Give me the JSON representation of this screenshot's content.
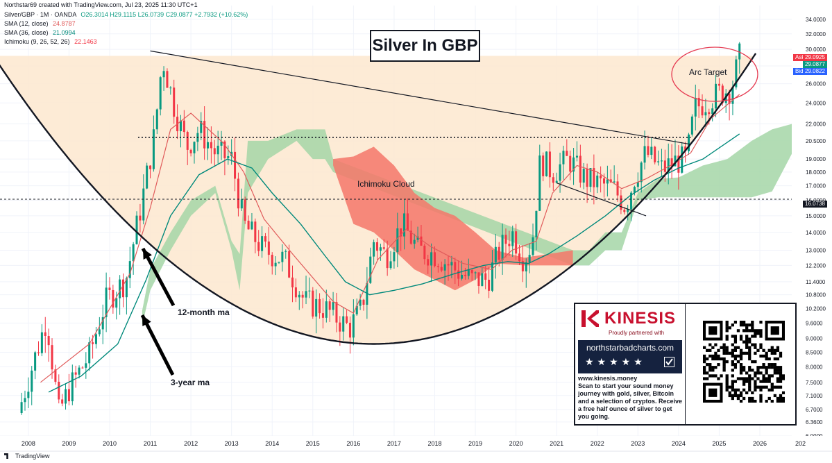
{
  "header": {
    "credit": "Northstar69 created with TradingView.com, Jul 23, 2025 11:30 UTC+1",
    "symbol": "Silver/GBP · 1M · OANDA",
    "ohlc": "O26.3014 H29.1115 L26.0739 C29.0877 +2.7932 (+10.62%)",
    "sma12_label": "SMA (12, close)",
    "sma12_value": "24.8787",
    "sma36_label": "SMA (36, close)",
    "sma36_value": "21.0994",
    "ichimoku_label": "Ichimoku (9, 26, 52, 26)",
    "ichimoku_value": "22.1463"
  },
  "title": "Silver In GBP",
  "annotations": {
    "cloud": "Ichimoku Cloud",
    "arc_target": "Arc Target",
    "ma12": "12-month ma",
    "ma36": "3-year ma"
  },
  "price_labels": {
    "ask_tag": "Ask",
    "ask": "29.0925",
    "last": "29.0877",
    "bid_tag": "Bid",
    "bid": "29.0822",
    "marker": "16.0738"
  },
  "promo": {
    "brand": "KINESIS",
    "tagline": "Proudly partnered with",
    "partner": "northstarbadcharts.com",
    "stars": "★★★★★",
    "url": "www.kinesis.money",
    "text": "Scan to start your sound money journey with gold, silver, Bitcoin and a selection of cryptos. Receive a free half ounce of silver to get you going."
  },
  "footer": {
    "logo": "TradingView"
  },
  "colors": {
    "up": "#089981",
    "down": "#f23645",
    "sma12": "#e05a5a",
    "sma36": "#00897b",
    "cloud_bull": "#a5d6a7",
    "cloud_bear": "#f4776a",
    "cup_fill": "#fde7cf",
    "arc_target_circle": "#e53950"
  },
  "chart_data": {
    "type": "candlestick",
    "scale": "log",
    "x_axis": {
      "ticks": [
        "2008",
        "2009",
        "2010",
        "2011",
        "2012",
        "2013",
        "2014",
        "2015",
        "2016",
        "2017",
        "2018",
        "2019",
        "2020",
        "2021",
        "2022",
        "2023",
        "2024",
        "2025",
        "2026",
        "202"
      ]
    },
    "y_axis": {
      "ticks": [
        "34.0000",
        "32.0000",
        "30.0000",
        "28.0000",
        "26.0000",
        "24.0000",
        "22.0000",
        "20.5000",
        "19.0000",
        "18.0000",
        "17.0000",
        "16.0000",
        "15.0000",
        "14.0000",
        "13.0000",
        "12.2000",
        "11.4000",
        "10.8000",
        "10.2000",
        "9.6000",
        "9.0000",
        "8.5000",
        "8.0000",
        "7.5000",
        "7.1000",
        "6.7000",
        "6.3600",
        "6.0000"
      ],
      "range": [
        6.0,
        36.0
      ]
    },
    "series": [
      {
        "name": "Silver/GBP · 1M · OANDA",
        "kind": "candles",
        "anchors": [
          [
            2007.75,
            6.6
          ],
          [
            2008.2,
            8.5
          ],
          [
            2008.45,
            9.8
          ],
          [
            2008.75,
            6.6
          ],
          [
            2009.0,
            7.3
          ],
          [
            2009.5,
            8.4
          ],
          [
            2009.9,
            10.5
          ],
          [
            2010.4,
            11.5
          ],
          [
            2010.8,
            16.0
          ],
          [
            2011.1,
            21.0
          ],
          [
            2011.3,
            29.0
          ],
          [
            2011.6,
            23.5
          ],
          [
            2011.9,
            20.0
          ],
          [
            2012.2,
            21.5
          ],
          [
            2012.6,
            19.5
          ],
          [
            2013.0,
            19.0
          ],
          [
            2013.3,
            14.5
          ],
          [
            2013.8,
            13.0
          ],
          [
            2014.3,
            12.5
          ],
          [
            2014.8,
            10.5
          ],
          [
            2015.3,
            10.2
          ],
          [
            2015.9,
            9.4
          ],
          [
            2016.2,
            10.2
          ],
          [
            2016.5,
            13.5
          ],
          [
            2016.8,
            12.7
          ],
          [
            2017.2,
            14.5
          ],
          [
            2017.6,
            13.0
          ],
          [
            2018.0,
            12.8
          ],
          [
            2018.5,
            12.0
          ],
          [
            2018.9,
            11.5
          ],
          [
            2019.3,
            11.5
          ],
          [
            2019.6,
            13.0
          ],
          [
            2019.9,
            14.0
          ],
          [
            2020.2,
            12.5
          ],
          [
            2020.4,
            13.5
          ],
          [
            2020.6,
            19.0
          ],
          [
            2020.9,
            18.0
          ],
          [
            2021.3,
            19.0
          ],
          [
            2021.7,
            17.5
          ],
          [
            2022.0,
            17.2
          ],
          [
            2022.4,
            16.8
          ],
          [
            2022.7,
            15.6
          ],
          [
            2022.9,
            17.5
          ],
          [
            2023.2,
            19.5
          ],
          [
            2023.6,
            18.2
          ],
          [
            2023.9,
            18.8
          ],
          [
            2024.2,
            19.0
          ],
          [
            2024.4,
            23.5
          ],
          [
            2024.8,
            24.5
          ],
          [
            2025.0,
            25.0
          ],
          [
            2025.3,
            25.5
          ],
          [
            2025.5,
            29.0877
          ]
        ]
      },
      {
        "name": "SMA (12, close)",
        "kind": "line",
        "points": [
          [
            2008.3,
            7.5
          ],
          [
            2009.5,
            8.8
          ],
          [
            2010.5,
            11.8
          ],
          [
            2011.0,
            15.5
          ],
          [
            2011.5,
            21.5
          ],
          [
            2012.0,
            23.0
          ],
          [
            2012.8,
            20.3
          ],
          [
            2013.3,
            18.0
          ],
          [
            2013.8,
            14.8
          ],
          [
            2014.5,
            12.8
          ],
          [
            2015.5,
            10.5
          ],
          [
            2016.0,
            10.0
          ],
          [
            2016.6,
            12.5
          ],
          [
            2017.3,
            14.2
          ],
          [
            2017.9,
            13.2
          ],
          [
            2018.7,
            12.3
          ],
          [
            2019.4,
            12.0
          ],
          [
            2019.9,
            13.0
          ],
          [
            2020.5,
            13.5
          ],
          [
            2020.9,
            16.5
          ],
          [
            2021.5,
            18.5
          ],
          [
            2022.0,
            18.0
          ],
          [
            2022.6,
            16.8
          ],
          [
            2023.2,
            17.5
          ],
          [
            2023.8,
            18.5
          ],
          [
            2024.3,
            19.5
          ],
          [
            2024.8,
            22.5
          ],
          [
            2025.5,
            24.8787
          ]
        ]
      },
      {
        "name": "SMA (36, close)",
        "kind": "line",
        "points": [
          [
            2008.5,
            7.2
          ],
          [
            2009.3,
            7.7
          ],
          [
            2010.2,
            8.8
          ],
          [
            2010.9,
            11.5
          ],
          [
            2011.5,
            15.0
          ],
          [
            2012.2,
            17.8
          ],
          [
            2012.9,
            19.0
          ],
          [
            2013.5,
            18.3
          ],
          [
            2014.0,
            16.5
          ],
          [
            2014.7,
            14.5
          ],
          [
            2015.3,
            12.7
          ],
          [
            2015.8,
            11.4
          ],
          [
            2016.4,
            10.8
          ],
          [
            2017.0,
            11.0
          ],
          [
            2017.7,
            11.3
          ],
          [
            2018.5,
            11.8
          ],
          [
            2019.2,
            12.2
          ],
          [
            2019.8,
            12.4
          ],
          [
            2020.3,
            12.3
          ],
          [
            2020.8,
            12.8
          ],
          [
            2021.5,
            13.8
          ],
          [
            2022.2,
            15.0
          ],
          [
            2022.8,
            16.3
          ],
          [
            2023.4,
            17.4
          ],
          [
            2024.0,
            18.3
          ],
          [
            2024.6,
            19.0
          ],
          [
            2025.5,
            21.0994
          ]
        ]
      },
      {
        "name": "Ichimoku (9, 26, 52, 26)",
        "kind": "cloud",
        "bull": [
          [
            2010.8,
            10.1,
            9.5
          ],
          [
            2011.0,
            12.0,
            11.0
          ],
          [
            2011.5,
            14.0,
            13.0
          ],
          [
            2012.0,
            16.0,
            15.0
          ],
          [
            2012.6,
            17.0,
            16.5
          ],
          [
            2013.0,
            13.5,
            13.0
          ],
          [
            2013.2,
            12.8,
            11.0
          ],
          [
            2013.4,
            20.5,
            16.5
          ],
          [
            2013.9,
            20.5,
            19.0
          ],
          [
            2014.6,
            21.5,
            20.5
          ],
          [
            2015.0,
            21.5,
            19.0
          ],
          [
            2015.3,
            21.5,
            19.0
          ],
          [
            2015.5,
            19.0,
            18.0
          ],
          [
            2021.4,
            13.0,
            12.2
          ],
          [
            2021.8,
            13.0,
            12.2
          ],
          [
            2022.2,
            14.0,
            13.0
          ],
          [
            2022.6,
            14.0,
            13.0
          ],
          [
            2023.0,
            16.5,
            16.0
          ],
          [
            2023.5,
            17.5,
            16.2
          ],
          [
            2024.0,
            17.6,
            16.2
          ],
          [
            2024.6,
            18.5,
            16.2
          ],
          [
            2025.2,
            19.0,
            16.2
          ],
          [
            2025.8,
            20.5,
            16.2
          ],
          [
            2026.3,
            21.5,
            16.6
          ],
          [
            2026.8,
            22.0,
            19.5
          ]
        ],
        "bear": [
          [
            2015.5,
            19.0,
            18.5
          ],
          [
            2016.0,
            19.2,
            14.5
          ],
          [
            2016.5,
            20.0,
            14.0
          ],
          [
            2017.0,
            18.5,
            13.0
          ],
          [
            2017.5,
            16.5,
            12.0
          ],
          [
            2018.0,
            15.5,
            11.5
          ],
          [
            2018.5,
            15.0,
            11.0
          ],
          [
            2019.0,
            14.0,
            11.5
          ],
          [
            2019.5,
            13.0,
            12.3
          ],
          [
            2020.2,
            12.6,
            12.2
          ],
          [
            2021.4,
            13.0,
            12.2
          ]
        ]
      }
    ],
    "levels": [
      {
        "value": 16.0738
      },
      {
        "value": 20.8
      }
    ],
    "price_range_band": [
      15.9,
      29.2
    ],
    "trendlines": [
      [
        [
          2011.0,
          29.8
        ],
        [
          2024.3,
          20.2
        ]
      ],
      [
        [
          2021.0,
          17.2
        ],
        [
          2023.2,
          15.0
        ]
      ]
    ],
    "cup_arc": {
      "left": [
        2007.1,
        29.5
      ],
      "bottom": [
        2017.5,
        8.8
      ],
      "right": [
        2025.9,
        29.5
      ]
    }
  }
}
